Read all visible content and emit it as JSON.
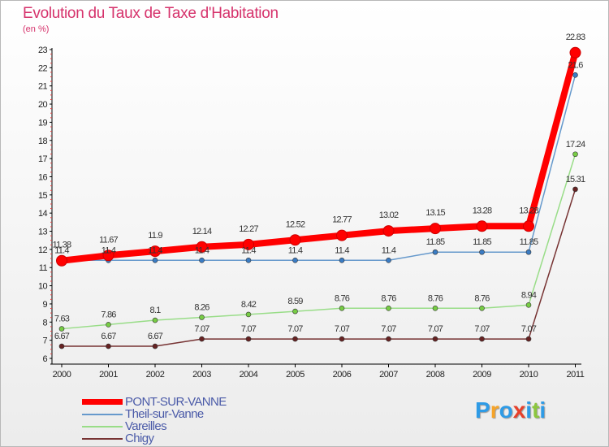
{
  "title": "Evolution du Taux de Taxe d'Habitation",
  "subtitle": "(en %)",
  "logo": {
    "letters": [
      {
        "char": "P",
        "color": "#2e9be6"
      },
      {
        "char": "r",
        "color": "#f7a428"
      },
      {
        "char": "o",
        "color": "#2e9be6"
      },
      {
        "char": "x",
        "color": "#e8402a"
      },
      {
        "char": "i",
        "color": "#2e9be6"
      },
      {
        "char": "t",
        "color": "#8cc63f"
      },
      {
        "char": "i",
        "color": "#2e9be6"
      }
    ]
  },
  "chart_data": {
    "type": "line",
    "title": "Evolution du Taux de Taxe d'Habitation",
    "ylabel": "(en %)",
    "xlabel": "",
    "ylim": [
      6,
      23
    ],
    "yticks": [
      "6",
      "7",
      "8",
      "9",
      "10",
      "11",
      "12",
      "13",
      "14",
      "15",
      "16",
      "17",
      "18",
      "19",
      "20",
      "21",
      "22",
      "23"
    ],
    "categories": [
      "2000",
      "2001",
      "2002",
      "2003",
      "2004",
      "2005",
      "2006",
      "2007",
      "2008",
      "2009",
      "2010",
      "2011"
    ],
    "series": [
      {
        "name": "PONT-SUR-VANNE",
        "color": "#ff0000",
        "values": [
          11.38,
          11.67,
          11.9,
          12.14,
          12.27,
          12.52,
          12.77,
          13.02,
          13.15,
          13.28,
          13.28,
          22.83
        ],
        "labels": [
          "11.38",
          "11.67",
          "11.9",
          "12.14",
          "12.27",
          "12.52",
          "12.77",
          "13.02",
          "13.15",
          "13.28",
          "13.28",
          "22.83"
        ]
      },
      {
        "name": "Theil-sur-Vanne",
        "color": "#6699cc",
        "marker": "#3a7cc4",
        "values": [
          11.4,
          11.4,
          11.4,
          11.4,
          11.4,
          11.4,
          11.4,
          11.4,
          11.85,
          11.85,
          11.85,
          21.6
        ],
        "labels": [
          "11.4",
          "11.4",
          "11.4",
          "11.4",
          "11.4",
          "11.4",
          "11.4",
          "11.4",
          "11.85",
          "11.85",
          "11.85",
          "21.6"
        ]
      },
      {
        "name": "Vareilles",
        "color": "#99dd88",
        "marker": "#77cc44",
        "values": [
          7.63,
          7.86,
          8.1,
          8.26,
          8.42,
          8.59,
          8.76,
          8.76,
          8.76,
          8.76,
          8.94,
          17.24
        ],
        "labels": [
          "7.63",
          "7.86",
          "8.1",
          "8.26",
          "8.42",
          "8.59",
          "8.76",
          "8.76",
          "8.76",
          "8.76",
          "8.94",
          "17.24"
        ]
      },
      {
        "name": "Chigy",
        "color": "#773333",
        "marker": "#662222",
        "values": [
          6.67,
          6.67,
          6.67,
          7.07,
          7.07,
          7.07,
          7.07,
          7.07,
          7.07,
          7.07,
          7.07,
          15.31
        ],
        "labels": [
          "6.67",
          "6.67",
          "6.67",
          "7.07",
          "7.07",
          "7.07",
          "7.07",
          "7.07",
          "7.07",
          "7.07",
          "7.07",
          "15.31"
        ]
      }
    ],
    "legend_position": "bottom-left",
    "grid": false
  }
}
